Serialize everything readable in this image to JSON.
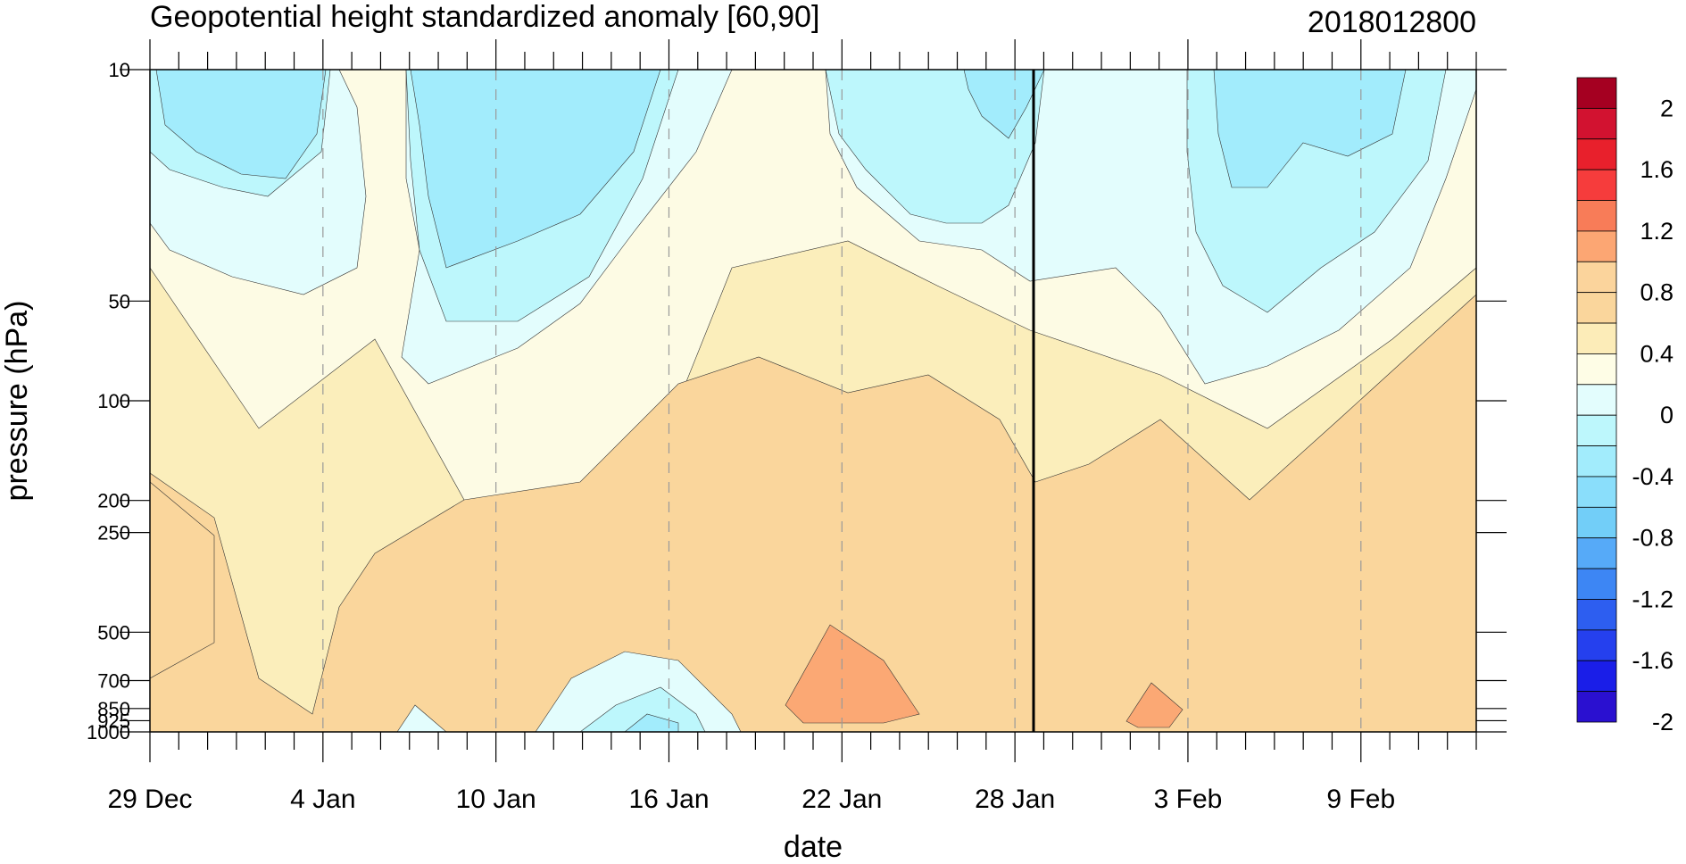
{
  "chart_data": {
    "type": "heatmap",
    "title": "Geopotential height standardized anomaly [60,90]",
    "subtitle": "2018012800",
    "xlabel": "date",
    "ylabel": "pressure (hPa)",
    "x_range": [
      "2017-12-29",
      "2018-02-13"
    ],
    "y_log_scale": true,
    "ylim": [
      1000,
      10
    ],
    "x_ticks": [
      "29 Dec",
      "4 Jan",
      "10 Jan",
      "16 Jan",
      "22 Jan",
      "28 Jan",
      "3 Feb",
      "9 Feb"
    ],
    "y_ticks": [
      "10",
      "50",
      "100",
      "200",
      "250",
      "500",
      "700",
      "850",
      "925",
      "1000"
    ],
    "colorbar_labels": [
      "2",
      "1.6",
      "1.2",
      "0.8",
      "0.4",
      "0",
      "-0.4",
      "-0.8",
      "-1.2",
      "-1.6",
      "-2"
    ],
    "colorbar_colors": [
      "#a50021",
      "#d21230",
      "#e8202c",
      "#f63c3c",
      "#f87c58",
      "#fca673",
      "#fbd49c",
      "#fad69c",
      "#fcecb8",
      "#fefde6",
      "#e3fdfd",
      "#bdf7fc",
      "#a2ecfc",
      "#8adefb",
      "#72cef8",
      "#56aaf8",
      "#3d86f4",
      "#2d5ef0",
      "#2540ee",
      "#1a1ee8",
      "#2a10d0"
    ],
    "forecast_date": "28 Jan",
    "x_days": [
      "2017-12-29",
      "2018-01-04",
      "2018-01-10",
      "2018-01-16",
      "2018-01-22",
      "2018-01-28",
      "2018-02-03",
      "2018-02-09",
      "2018-02-13"
    ],
    "levels_hPa": [
      10,
      20,
      30,
      50,
      70,
      100,
      150,
      200,
      250,
      300,
      500,
      700,
      850,
      925,
      1000
    ],
    "anomaly_bands": [
      {
        "level_min": -0.8,
        "level_max": -0.4,
        "note": "upper stratosphere, early Jan and early Feb"
      },
      {
        "level_min": 0.4,
        "level_max": 0.8,
        "note": "mid troposphere, 20-28 Jan"
      },
      {
        "level_min": 0.8,
        "level_max": 1.2,
        "note": "lower troposphere around 22 Jan and 1 Feb"
      }
    ]
  }
}
